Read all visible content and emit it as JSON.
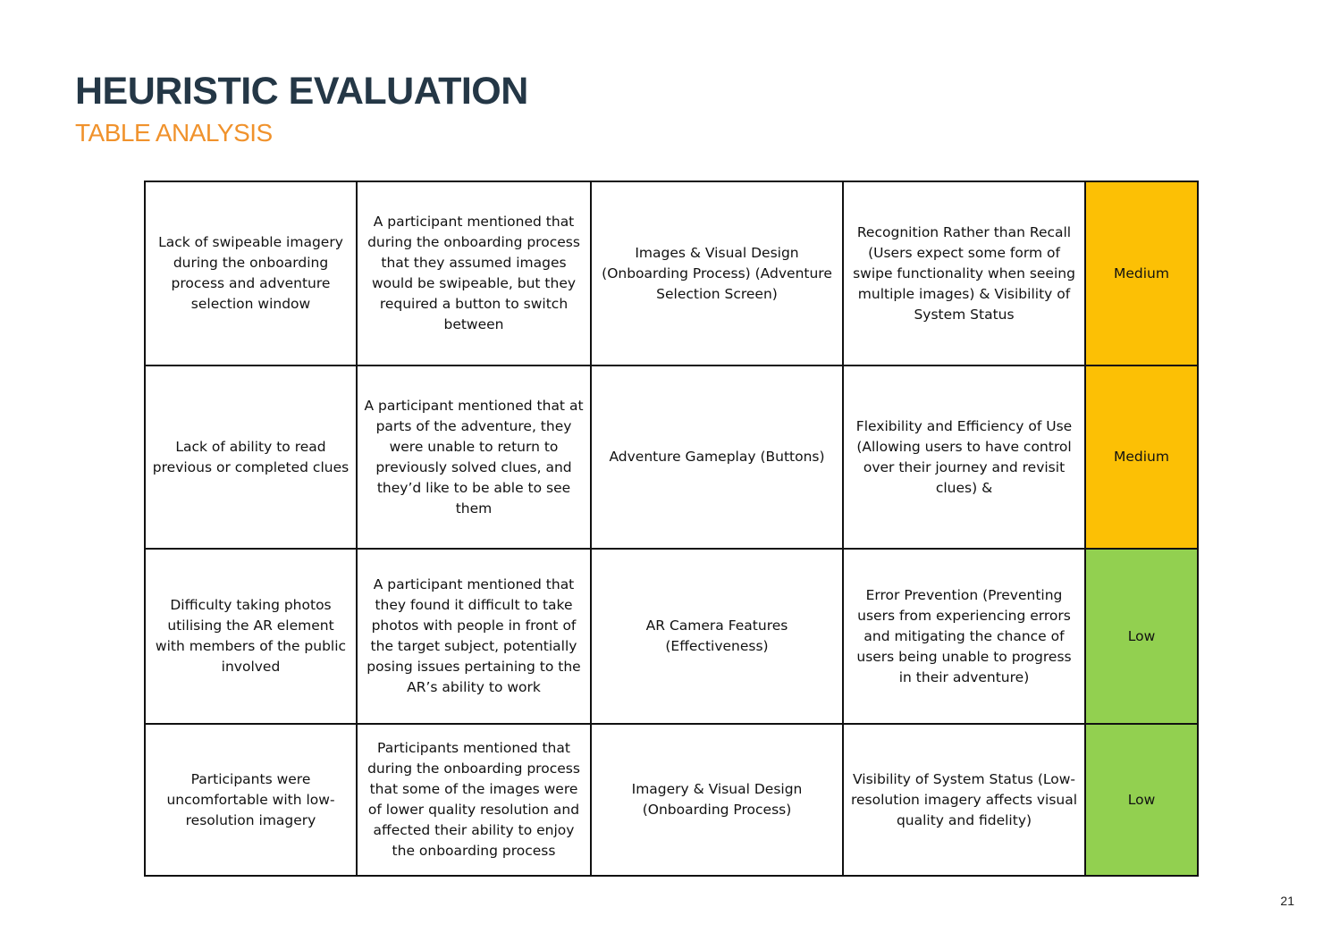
{
  "header": {
    "title": "HEURISTIC EVALUATION",
    "subtitle": "TABLE ANALYSIS"
  },
  "table": {
    "rows": [
      {
        "issue": "Lack of swipeable imagery during the onboarding process and adventure selection window",
        "feedback": "A participant mentioned that during the onboarding process that they assumed images would be swipeable, but they required a button to switch between",
        "area": "Images & Visual Design (Onboarding Process) (Adventure Selection Screen)",
        "heuristic": "Recognition Rather than Recall (Users expect some form of swipe functionality when seeing multiple images) & Visibility of System Status",
        "severity": "Medium"
      },
      {
        "issue": "Lack of ability to read previous or completed clues",
        "feedback": "A participant mentioned that at parts of the adventure, they were unable to return to previously solved clues, and they’d like to be able to see them",
        "area": "Adventure Gameplay (Buttons)",
        "heuristic": "Flexibility and Efficiency of Use (Allowing users to have control over their journey and revisit clues) &",
        "severity": "Medium"
      },
      {
        "issue": "Difficulty taking photos utilising the AR element with members of the public involved",
        "feedback": "A participant mentioned that they found it difficult to take photos with people in front of the target subject, potentially posing issues pertaining to the AR’s ability to work",
        "area": "AR Camera Features (Effectiveness)",
        "heuristic": "Error Prevention (Preventing users from experiencing errors and mitigating the chance of users being unable to progress in their adventure)",
        "severity": "Low"
      },
      {
        "issue": "Participants were uncomfortable with low-resolution imagery",
        "feedback": "Participants mentioned that during the onboarding process that some of the images were of lower quality resolution and affected their ability to enjoy the onboarding process",
        "area": "Imagery & Visual Design (Onboarding Process)",
        "heuristic": "Visibility of System Status (Low-resolution imagery affects visual quality and fidelity)",
        "severity": "Low"
      }
    ]
  },
  "colors": {
    "title": "#243746",
    "subtitle": "#f0922c",
    "severity_medium": "#fcc005",
    "severity_low": "#92d050"
  },
  "footer": {
    "page_number": "21"
  }
}
